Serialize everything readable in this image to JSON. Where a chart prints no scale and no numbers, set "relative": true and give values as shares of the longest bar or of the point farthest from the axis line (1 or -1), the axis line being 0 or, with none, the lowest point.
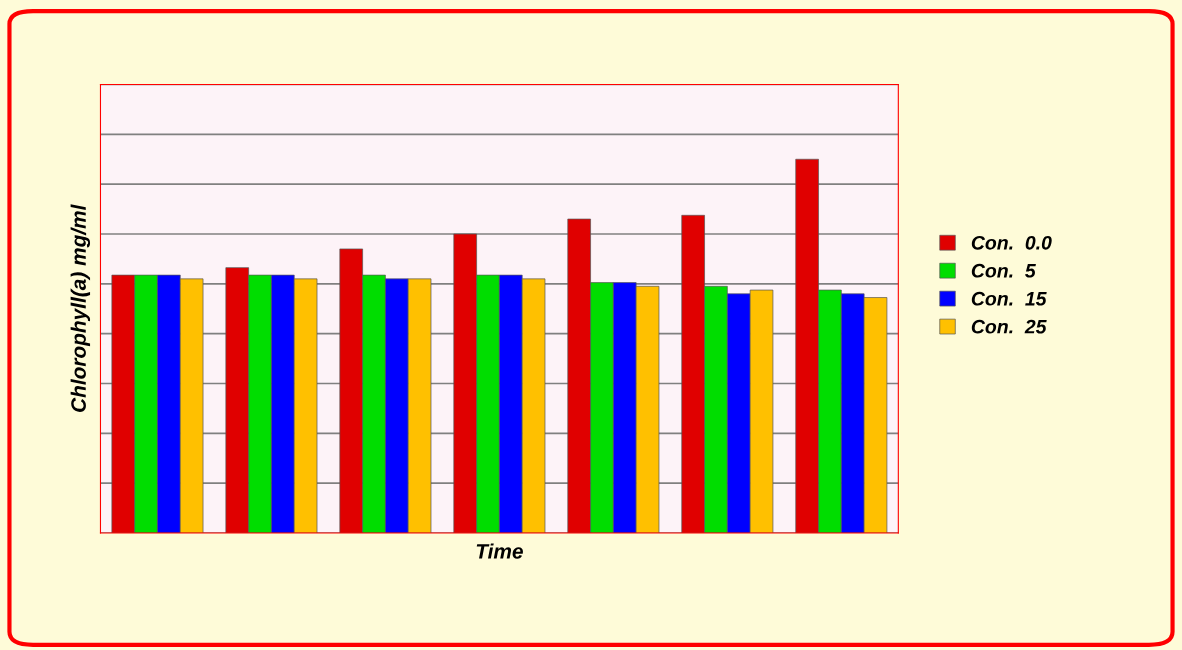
{
  "chart_data": {
    "type": "bar",
    "relative": true,
    "xlabel": "Time",
    "ylabel": "Chlorophyll(a) mg/ml",
    "categories": [
      null,
      null,
      null,
      null,
      null,
      null,
      null
    ],
    "series": [
      {
        "name": "Con.  0.0",
        "color": "#e00000",
        "values": [
          0.69,
          0.71,
          0.76,
          0.8,
          0.84,
          0.85,
          1
        ]
      },
      {
        "name": "Con.  5",
        "color": "#00dd00",
        "values": [
          0.69,
          0.69,
          0.69,
          0.69,
          0.67,
          0.66,
          0.65
        ]
      },
      {
        "name": "Con.  15",
        "color": "#0000ff",
        "values": [
          0.69,
          0.69,
          0.68,
          0.69,
          0.67,
          0.64,
          0.64
        ]
      },
      {
        "name": "Con.  25",
        "color": "#ffc000",
        "values": [
          0.68,
          0.68,
          0.68,
          0.68,
          0.66,
          0.65,
          0.63
        ]
      }
    ],
    "grid": "y",
    "legend": "right"
  }
}
